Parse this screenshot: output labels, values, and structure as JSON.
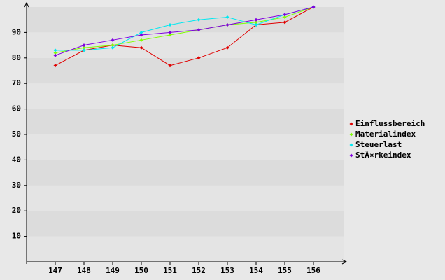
{
  "chart_data": {
    "type": "line",
    "categories": [
      "147",
      "148",
      "149",
      "150",
      "151",
      "152",
      "153",
      "154",
      "155",
      "156"
    ],
    "series": [
      {
        "name": "Einflussbereich",
        "color": "#e00000",
        "values": [
          77,
          83,
          85,
          84,
          77,
          80,
          84,
          93,
          94,
          100
        ]
      },
      {
        "name": "Materialindex",
        "color": "#80ff00",
        "values": [
          82,
          84,
          85,
          87,
          89,
          91,
          93,
          94,
          96,
          100
        ]
      },
      {
        "name": "Steuerlast",
        "color": "#00e8f0",
        "values": [
          83,
          83,
          84,
          90,
          93,
          95,
          96,
          93,
          97,
          100
        ]
      },
      {
        "name": "StÃ¤rkeindex",
        "color": "#8000e0",
        "values": [
          81,
          85,
          87,
          89,
          90,
          91,
          93,
          95,
          97,
          100
        ]
      }
    ],
    "ylim": [
      0,
      100
    ],
    "yticks": [
      10,
      20,
      30,
      40,
      50,
      60,
      70,
      80,
      90
    ],
    "grid": true,
    "legend": "right"
  }
}
